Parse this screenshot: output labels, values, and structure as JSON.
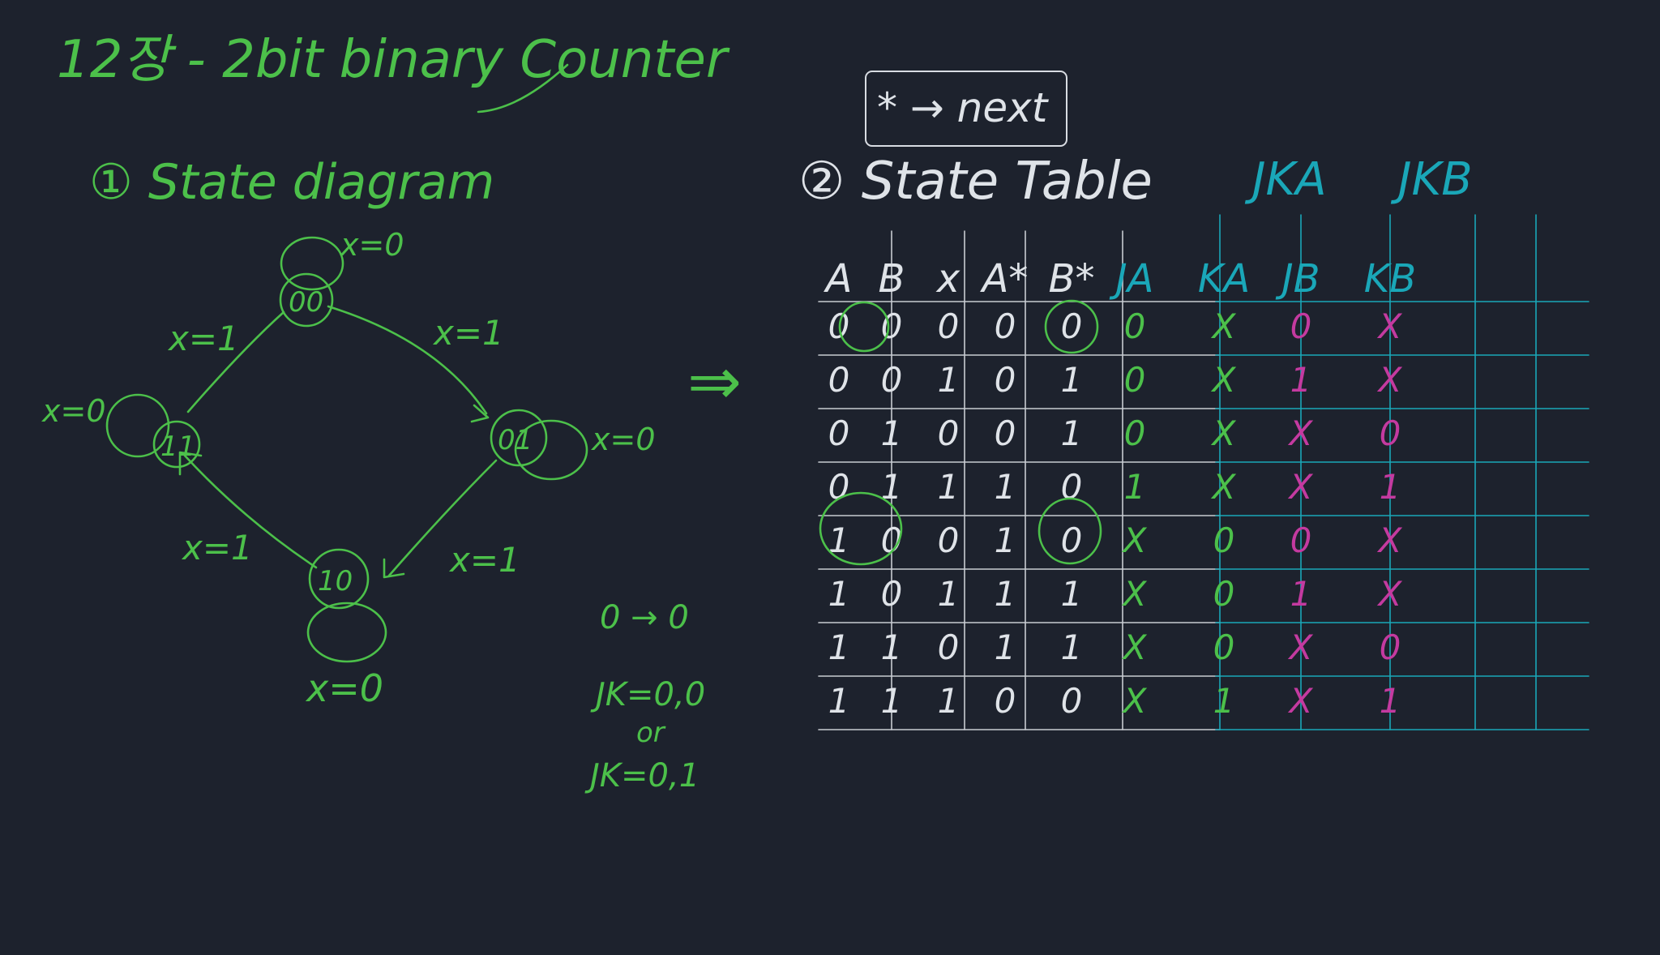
{
  "title": "12장 - 2bit binary Counter",
  "note_box": "* → next",
  "section1": "① State diagram",
  "section2": "② State Table",
  "states": [
    "00",
    "01",
    "10",
    "11"
  ],
  "transitions": [
    {
      "label": "x=0",
      "kind": "self",
      "state": "00"
    },
    {
      "label": "x=1",
      "from": "00",
      "to": "01"
    },
    {
      "label": "x=0",
      "kind": "self",
      "state": "01"
    },
    {
      "label": "x=1",
      "from": "01",
      "to": "10"
    },
    {
      "label": "x=0",
      "kind": "self",
      "state": "10"
    },
    {
      "label": "x=1",
      "from": "10",
      "to": "11"
    },
    {
      "label": "x=0",
      "kind": "self",
      "state": "11"
    },
    {
      "label": "x=1",
      "from": "11",
      "to": "00"
    }
  ],
  "implies_arrow": "⇒",
  "jk_note": [
    "0 → 0",
    "JK=0,0",
    "or",
    "JK=0,1"
  ],
  "jk_groups": [
    "JKA",
    "JKB"
  ],
  "table": {
    "headers": [
      "A",
      "B",
      "x",
      "A*",
      "B*",
      "JA",
      "KA",
      "JB",
      "KB"
    ],
    "rows": [
      [
        "0",
        "0",
        "0",
        "0",
        "0",
        "0",
        "X",
        "0",
        "X"
      ],
      [
        "0",
        "0",
        "1",
        "0",
        "1",
        "0",
        "X",
        "1",
        "X"
      ],
      [
        "0",
        "1",
        "0",
        "0",
        "1",
        "0",
        "X",
        "X",
        "0"
      ],
      [
        "0",
        "1",
        "1",
        "1",
        "0",
        "1",
        "X",
        "X",
        "1"
      ],
      [
        "1",
        "0",
        "0",
        "1",
        "0",
        "X",
        "0",
        "0",
        "X"
      ],
      [
        "1",
        "0",
        "1",
        "1",
        "1",
        "X",
        "0",
        "1",
        "X"
      ],
      [
        "1",
        "1",
        "0",
        "1",
        "1",
        "X",
        "0",
        "X",
        "0"
      ],
      [
        "1",
        "1",
        "1",
        "0",
        "0",
        "X",
        "1",
        "X",
        "1"
      ]
    ]
  },
  "colors": {
    "background": "#1d222d",
    "green_ink": "#4cc04a",
    "white_ink": "#dfe3e8",
    "blue_ink": "#1aa7b8",
    "pink_ink": "#c43aa0"
  }
}
